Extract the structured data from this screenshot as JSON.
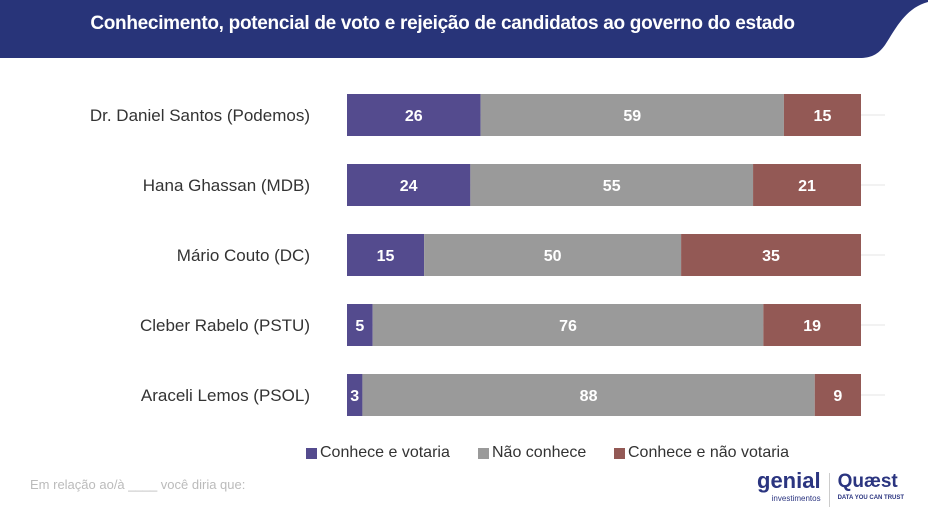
{
  "header": {
    "title": "Conhecimento, potencial de voto e rejeição de candidatos ao governo do estado",
    "bg": "#283479"
  },
  "chart_data": {
    "type": "bar",
    "stacked": true,
    "orientation": "horizontal",
    "categories": [
      "Dr. Daniel Santos (Podemos)",
      "Hana Ghassan (MDB)",
      "Mário Couto (DC)",
      "Cleber Rabelo (PSTU)",
      "Araceli Lemos (PSOL)"
    ],
    "series": [
      {
        "name": "Conhece e votaria",
        "values": [
          26,
          24,
          15,
          5,
          3
        ],
        "color": "#544b8e"
      },
      {
        "name": "Não conhece",
        "values": [
          59,
          55,
          50,
          76,
          88
        ],
        "color": "#9a9a9a"
      },
      {
        "name": "Conhece e não votaria",
        "values": [
          15,
          21,
          35,
          19,
          9
        ],
        "color": "#935955"
      }
    ],
    "xlim": [
      0,
      100
    ],
    "legend": "bottom",
    "grid": true
  },
  "footer": {
    "note": "Em relação ao/à ____ você diria que:",
    "logo1": "genial",
    "logo1_sub": "investimentos",
    "logo2": "Quæst",
    "logo2_sub": "DATA YOU CAN TRUST"
  }
}
